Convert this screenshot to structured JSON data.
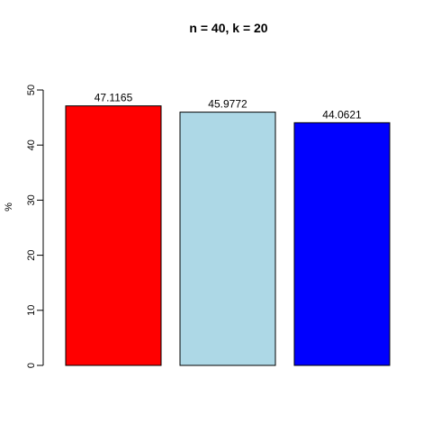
{
  "chart_data": {
    "type": "bar",
    "title": "n = 40, k = 20",
    "xlabel": "",
    "ylabel": "%",
    "ylim": [
      0,
      50
    ],
    "yticks": [
      0,
      10,
      20,
      30,
      40,
      50
    ],
    "grid": false,
    "legend": "none",
    "categories": [
      "",
      "",
      ""
    ],
    "values": [
      47.1165,
      45.9772,
      44.0621
    ],
    "value_labels": [
      "47.1165",
      "45.9772",
      "44.0621"
    ],
    "colors": [
      "#ff0000",
      "#add8e6",
      "#0000ff"
    ]
  }
}
